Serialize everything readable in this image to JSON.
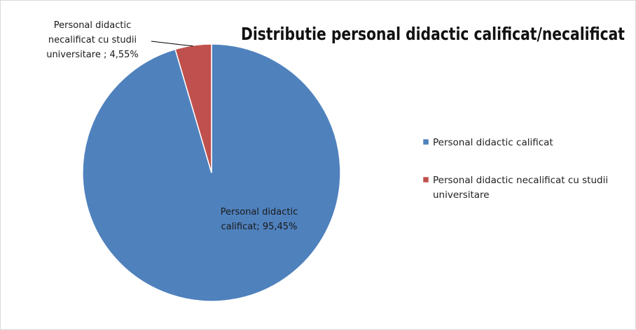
{
  "chart_data": {
    "type": "pie",
    "title": "Distributie personal didactic calificat/necalificat",
    "slices": [
      {
        "name": "Personal didactic calificat",
        "value": 95.45,
        "color": "#4f81bd",
        "data_label": [
          "Personal didactic",
          "calificat; 95,45%"
        ]
      },
      {
        "name": "Personal didactic necalificat cu studii universitare",
        "value": 4.55,
        "color": "#c0504d",
        "data_label": [
          "Personal didactic",
          "necalificat cu studii",
          "universitare ; 4,55%"
        ]
      }
    ],
    "legend": {
      "position": "right",
      "entries": [
        {
          "lines": [
            "Personal didactic calificat"
          ],
          "color": "#4f81bd"
        },
        {
          "lines": [
            "Personal didactic necalificat cu studii",
            "universitare"
          ],
          "color": "#c0504d"
        }
      ]
    }
  }
}
